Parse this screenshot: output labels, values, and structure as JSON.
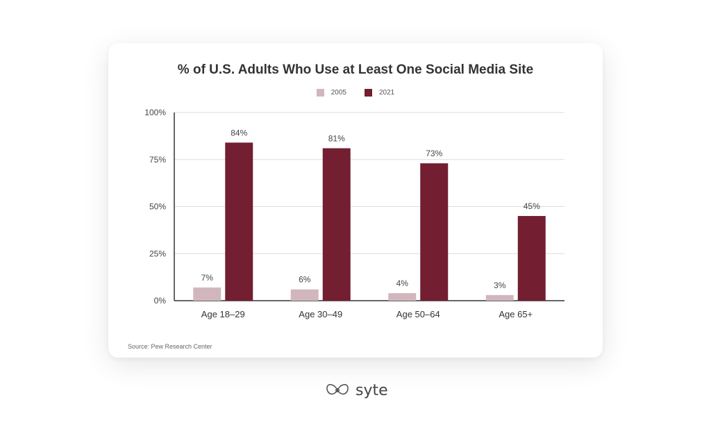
{
  "chart_data": {
    "type": "bar",
    "title": "% of U.S. Adults Who Use at Least One Social Media Site",
    "categories": [
      "Age 18–29",
      "Age 30–49",
      "Age 50–64",
      "Age 65+"
    ],
    "series": [
      {
        "name": "2005",
        "values": [
          7,
          6,
          4,
          3
        ],
        "color": "#d1b7bd"
      },
      {
        "name": "2021",
        "values": [
          84,
          81,
          73,
          45
        ],
        "color": "#731e31"
      }
    ],
    "data_labels": {
      "2005": [
        "7%",
        "6%",
        "4%",
        "3%"
      ],
      "2021": [
        "84%",
        "81%",
        "73%",
        "45%"
      ]
    },
    "ylim": [
      0,
      100
    ],
    "yticks": [
      0,
      25,
      50,
      75,
      100
    ],
    "ytick_labels": [
      "0%",
      "25%",
      "50%",
      "75%",
      "100%"
    ],
    "grid": true,
    "legend_position": "top-center",
    "xlabel": "",
    "ylabel": "",
    "source": "Source: Pew Research Center"
  },
  "brand": {
    "name": "syte",
    "color": "#444444"
  }
}
